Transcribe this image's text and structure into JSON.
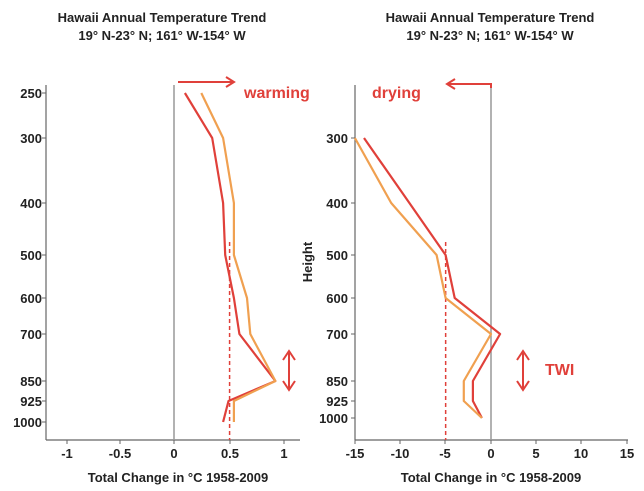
{
  "chart_data": [
    {
      "type": "line",
      "title": "Hawaii Annual Temperature Trend",
      "subtitle": "19° N-23° N; 161° W-154° W",
      "xlabel": "Total Change in °C 1958-2009",
      "ylabel": "",
      "xlim": [
        -1.25,
        1.25
      ],
      "ylim": [
        250,
        1000
      ],
      "xticks": [
        "-1",
        "-0.5",
        "0",
        "0.5",
        "1"
      ],
      "yticks": [
        "250",
        "300",
        "400",
        "500",
        "600",
        "700",
        "850",
        "925",
        "1000"
      ],
      "reference_line_x": 0,
      "mean_line_x": 0.51,
      "annotation": "warming",
      "series": [
        {
          "color": "#e0403a",
          "x": [
            0.1,
            0.35,
            0.45,
            0.47,
            0.55,
            0.6,
            0.93,
            0.5,
            0.45
          ],
          "y": [
            250,
            300,
            400,
            500,
            600,
            700,
            850,
            925,
            1000
          ]
        },
        {
          "color": "#f0a050",
          "x": [
            0.25,
            0.45,
            0.55,
            0.55,
            0.67,
            0.7,
            0.93,
            0.55,
            0.55
          ],
          "y": [
            250,
            300,
            400,
            500,
            600,
            700,
            850,
            925,
            1000
          ]
        }
      ]
    },
    {
      "type": "line",
      "title": "Hawaii Annual Temperature Trend",
      "subtitle": "19° N-23° N; 161° W-154° W",
      "xlabel": "Total Change in °C 1958-2009",
      "ylabel": "Height",
      "xlim": [
        -15,
        15
      ],
      "ylim": [
        250,
        1000
      ],
      "xticks": [
        "-15",
        "-10",
        "-5",
        "0",
        "5",
        "10",
        "15"
      ],
      "yticks": [
        "300",
        "400",
        "500",
        "600",
        "700",
        "850",
        "925",
        "1000"
      ],
      "reference_line_x": 0,
      "mean_line_x": -5,
      "annotation": "drying",
      "side_label": "TWI",
      "series": [
        {
          "color": "#e0403a",
          "x": [
            -14,
            -9,
            -5,
            -4,
            1,
            -2,
            -2,
            -1
          ],
          "y": [
            300,
            400,
            500,
            600,
            700,
            850,
            925,
            1000
          ]
        },
        {
          "color": "#f0a050",
          "x": [
            -15,
            -11,
            -6,
            -5,
            0,
            -3,
            -3,
            -1
          ],
          "y": [
            300,
            400,
            500,
            600,
            700,
            850,
            925,
            1000
          ]
        }
      ]
    }
  ]
}
